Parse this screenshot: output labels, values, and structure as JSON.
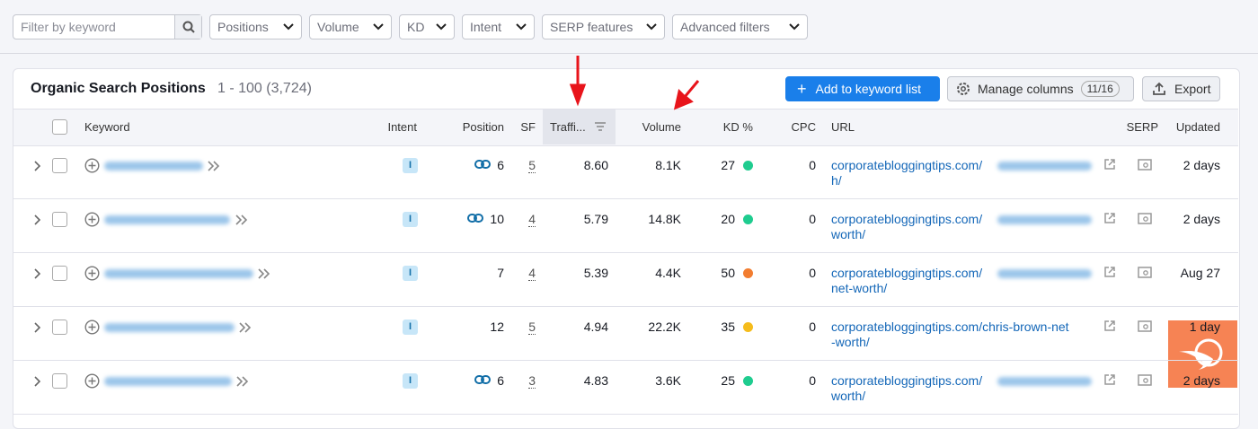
{
  "toolbar": {
    "search_placeholder": "Filter by keyword",
    "filters": [
      "Positions",
      "Volume",
      "KD",
      "Intent",
      "SERP features",
      "Advanced filters"
    ]
  },
  "header": {
    "title": "Organic Search Positions",
    "range": "1 - 100 (3,724)",
    "add_button": "Add to keyword list",
    "manage_button": "Manage columns",
    "manage_count": "11/16",
    "export_button": "Export"
  },
  "table": {
    "columns": [
      "Keyword",
      "Intent",
      "Position",
      "SF",
      "Traffi...",
      "Volume",
      "KD %",
      "CPC",
      "URL",
      "SERP",
      "Updated"
    ],
    "rows": [
      {
        "intent": "I",
        "position": "6",
        "link": true,
        "sf": "5",
        "traffic": "8.60",
        "volume": "8.1K",
        "kd": "27",
        "kd_color": "#1fcc8f",
        "cpc": "0",
        "url_line1": "corporatebloggingtips.com/",
        "url_line2": "h/",
        "blurred": true,
        "updated": "2 days"
      },
      {
        "intent": "I",
        "position": "10",
        "link": true,
        "sf": "4",
        "traffic": "5.79",
        "volume": "14.8K",
        "kd": "20",
        "kd_color": "#1fcc8f",
        "cpc": "0",
        "url_line1": "corporatebloggingtips.com/",
        "url_line2": "worth/",
        "blurred": true,
        "updated": "2 days"
      },
      {
        "intent": "I",
        "position": "7",
        "link": false,
        "sf": "4",
        "traffic": "5.39",
        "volume": "4.4K",
        "kd": "50",
        "kd_color": "#f27d30",
        "cpc": "0",
        "url_line1": "corporatebloggingtips.com/",
        "url_line2": "net-worth/",
        "blurred": true,
        "updated": "Aug 27"
      },
      {
        "intent": "I",
        "position": "12",
        "link": false,
        "sf": "5",
        "traffic": "4.94",
        "volume": "22.2K",
        "kd": "35",
        "kd_color": "#f5bc1c",
        "cpc": "0",
        "url_line1": "corporatebloggingtips.com/chris-brown-net",
        "url_line2": "-worth/",
        "blurred": false,
        "updated": "1 day"
      },
      {
        "intent": "I",
        "position": "6",
        "link": true,
        "sf": "3",
        "traffic": "4.83",
        "volume": "3.6K",
        "kd": "25",
        "kd_color": "#1fcc8f",
        "cpc": "0",
        "url_line1": "corporatebloggingtips.com/",
        "url_line2": "worth/",
        "blurred": true,
        "updated": "2 days"
      }
    ]
  }
}
